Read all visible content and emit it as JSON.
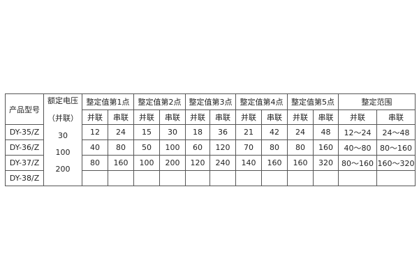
{
  "headers": {
    "model": "产品型号",
    "voltage": "额定电压",
    "voltage_sub": "（并联）",
    "groups": [
      "整定值第1点",
      "整定值第2点",
      "整定值第3点",
      "整定值第4点",
      "整定值第5点",
      "整定范围"
    ],
    "parallel": "并联",
    "series": "串联"
  },
  "voltages": [
    "30",
    "100",
    "200"
  ],
  "rows": [
    {
      "model": "DY-35/Z",
      "values": [
        "12",
        "24",
        "15",
        "30",
        "18",
        "36",
        "21",
        "42",
        "24",
        "48",
        "12～24",
        "24～48"
      ]
    },
    {
      "model": "DY-36/Z",
      "values": [
        "40",
        "80",
        "50",
        "100",
        "60",
        "120",
        "70",
        "80",
        "80",
        "160",
        "40～80",
        "80～160"
      ]
    },
    {
      "model": "DY-37/Z",
      "values": [
        "80",
        "160",
        "100",
        "200",
        "120",
        "240",
        "140",
        "160",
        "160",
        "320",
        "80～160",
        "160～320"
      ]
    },
    {
      "model": "DY-38/Z",
      "values": [
        "",
        "",
        "",
        "",
        "",
        "",
        "",
        "",
        "",
        "",
        "",
        ""
      ]
    }
  ]
}
